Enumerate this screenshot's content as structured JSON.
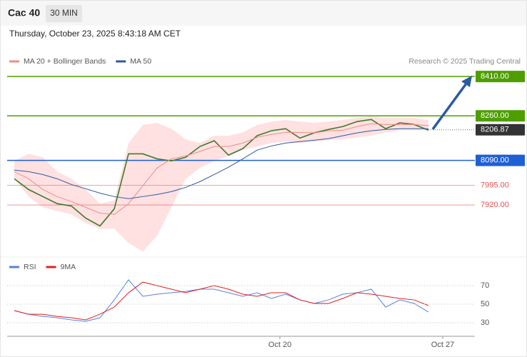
{
  "header": {
    "symbol": "Cac 40",
    "interval": "30 MIN",
    "timestamp": "Thursday, October 23, 2025 8:43:18 AM CET"
  },
  "chart_data": [
    {
      "type": "line",
      "source": "Research © 2025 Trading Central",
      "x": [
        0,
        1,
        2,
        3,
        4,
        5,
        6,
        7,
        8,
        9,
        10,
        11,
        12,
        13,
        14,
        15,
        16,
        17,
        18,
        19,
        20,
        21,
        22,
        23,
        24,
        25,
        26,
        27,
        28,
        29
      ],
      "xlim": [
        -0.5,
        32.25
      ],
      "ylim": [
        7735,
        8443
      ],
      "band": {
        "color": "#ffdcdc",
        "upper": [
          8088,
          8115,
          8102,
          8047,
          8020,
          7979,
          7925,
          7938,
          8156,
          8225,
          8233,
          8211,
          8170,
          8156,
          8184,
          8184,
          8197,
          8225,
          8238,
          8244,
          8238,
          8233,
          8238,
          8244,
          8252,
          8257,
          8252,
          8252,
          8252,
          8244
        ],
        "lower": [
          8020,
          7952,
          7911,
          7897,
          7884,
          7851,
          7829,
          7829,
          7775,
          7742,
          7802,
          7911,
          8020,
          8061,
          8088,
          8107,
          8129,
          8143,
          8156,
          8162,
          8156,
          8162,
          8167,
          8170,
          8178,
          8184,
          8197,
          8205,
          8205,
          8205
        ]
      },
      "series": [
        {
          "color": "#3d7a2a",
          "width": 1.6,
          "values": [
            8020,
            7979,
            7952,
            7925,
            7916,
            7870,
            7840,
            7905,
            8115,
            8115,
            8096,
            8088,
            8102,
            8143,
            8165,
            8110,
            8135,
            8184,
            8203,
            8211,
            8175,
            8195,
            8208,
            8219,
            8238,
            8246,
            8211,
            8233,
            8227,
            8205
          ]
        },
        {
          "name": "MA 20 + Bollinger Bands",
          "color": "#f08a8a",
          "width": 1,
          "values": [
            8047,
            8020,
            7979,
            7952,
            7933,
            7911,
            7889,
            7884,
            7925,
            7993,
            8061,
            8096,
            8107,
            8124,
            8143,
            8143,
            8156,
            8178,
            8189,
            8197,
            8197,
            8195,
            8203,
            8205,
            8219,
            8230,
            8227,
            8227,
            8227,
            8222
          ]
        },
        {
          "name": "MA 50",
          "color": "#2c5aa0",
          "width": 1,
          "values": [
            8053,
            8047,
            8036,
            8020,
            7998,
            7982,
            7965,
            7952,
            7944,
            7952,
            7960,
            7971,
            7987,
            8009,
            8036,
            8064,
            8096,
            8129,
            8145,
            8156,
            8162,
            8167,
            8173,
            8184,
            8195,
            8203,
            8208,
            8211,
            8211,
            8211
          ]
        }
      ],
      "levels": [
        {
          "value": 8410,
          "label": "8410.00",
          "color": "#4e9e00",
          "style": "box"
        },
        {
          "value": 8260,
          "label": "8260.00",
          "color": "#4e9e00",
          "style": "box"
        },
        {
          "value": 8206.87,
          "label": "8206.87",
          "color": "#333333",
          "style": "dotted-box"
        },
        {
          "value": 8090,
          "label": "8090.00",
          "color": "#1f5fd6",
          "style": "box"
        },
        {
          "value": 7995,
          "label": "7995.00",
          "color": "#e05555",
          "style": "text"
        },
        {
          "value": 7920,
          "label": "7920.00",
          "color": "#e05555",
          "style": "text"
        }
      ]
    },
    {
      "type": "line",
      "x": [
        0,
        1,
        2,
        3,
        4,
        5,
        6,
        7,
        8,
        9,
        10,
        11,
        12,
        13,
        14,
        15,
        16,
        17,
        18,
        19,
        20,
        21,
        22,
        23,
        24,
        25,
        26,
        27,
        28,
        29
      ],
      "xlim": [
        -0.5,
        32.25
      ],
      "ylim": [
        18.5,
        85.4
      ],
      "yticks": [
        30,
        50,
        70
      ],
      "grid": true,
      "xticks": [
        {
          "value": 18.6,
          "label": "Oct 20"
        },
        {
          "value": 30,
          "label": "Oct 27"
        }
      ],
      "series": [
        {
          "name": "RSI",
          "color": "#5b7fde",
          "width": 1,
          "values": [
            43.1,
            39.2,
            36.9,
            35.4,
            33.1,
            31.5,
            35.4,
            54.6,
            76.2,
            58.5,
            60.8,
            62.3,
            63.8,
            66.2,
            66.2,
            62.3,
            58.5,
            62.3,
            56.2,
            60.8,
            54.6,
            50.8,
            54.6,
            60.8,
            62.3,
            66.2,
            46.9,
            54.6,
            50.8,
            41.5
          ]
        },
        {
          "name": "9MA",
          "color": "#e02020",
          "width": 1,
          "values": [
            43.1,
            39.2,
            39.2,
            36.9,
            35.4,
            33.1,
            39.2,
            46.9,
            62.3,
            73.8,
            70,
            66.2,
            62.3,
            66.2,
            70,
            66.2,
            60.8,
            58.5,
            62.3,
            62.3,
            54.6,
            50.8,
            50.8,
            56.2,
            62.3,
            60.8,
            58.5,
            56.2,
            54.6,
            48.5
          ]
        }
      ]
    }
  ]
}
